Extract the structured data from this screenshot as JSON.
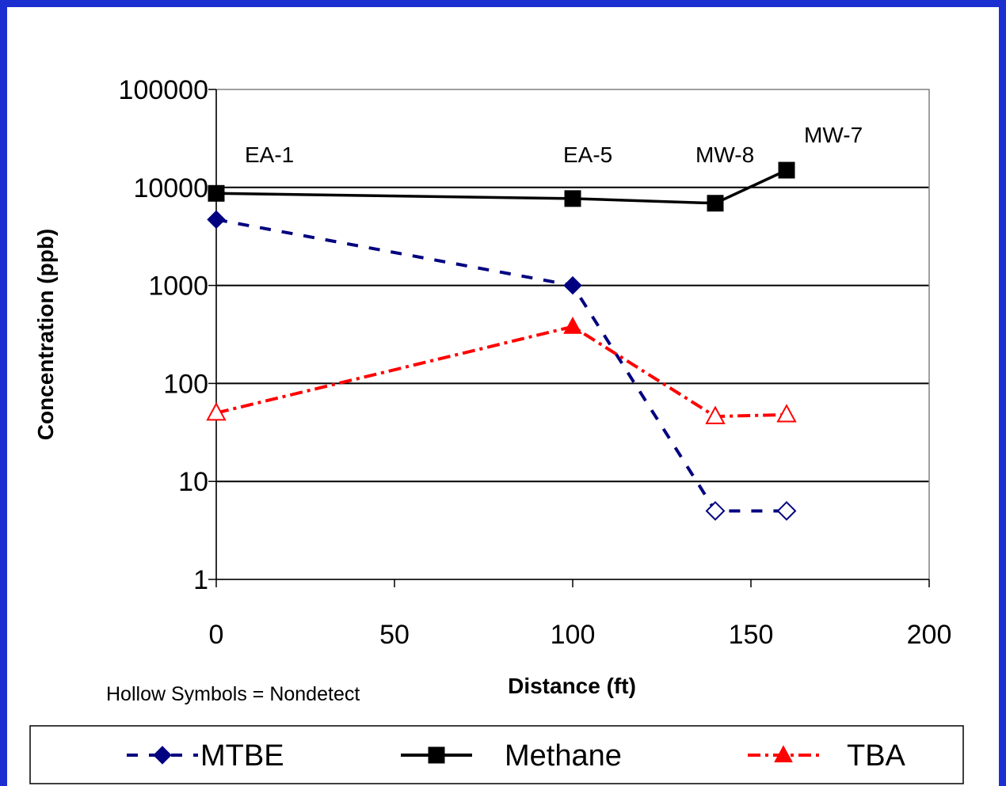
{
  "chart_data": {
    "type": "line",
    "xlabel": "Distance (ft)",
    "ylabel": "Concentration (ppb)",
    "xlim": [
      0,
      200
    ],
    "ylim": [
      1,
      100000
    ],
    "y_scale": "log",
    "grid": "horizontal major gridlines",
    "x_ticks": [
      "0",
      "50",
      "100",
      "150",
      "200"
    ],
    "y_ticks": [
      "1",
      "10",
      "100",
      "1000",
      "10000",
      "100000"
    ],
    "legend_position": "bottom",
    "note": "Hollow Symbols = Nondetect",
    "annotations": [
      {
        "text": "EA-1",
        "x": 0
      },
      {
        "text": "EA-5",
        "x": 100
      },
      {
        "text": "MW-8",
        "x": 140
      },
      {
        "text": "MW-7",
        "x": 160
      }
    ],
    "series": [
      {
        "name": "MTBE",
        "color": "#000080",
        "marker": "diamond",
        "line_style": "dashed",
        "x": [
          0,
          100,
          140,
          160
        ],
        "y": [
          4700,
          1000,
          5,
          5
        ],
        "hollow": [
          false,
          false,
          true,
          true
        ]
      },
      {
        "name": "Methane",
        "color": "#000000",
        "marker": "square",
        "line_style": "solid",
        "x": [
          0,
          100,
          140,
          160
        ],
        "y": [
          8700,
          7700,
          6900,
          15000
        ],
        "hollow": [
          false,
          false,
          false,
          false
        ]
      },
      {
        "name": "TBA",
        "color": "#ff0000",
        "marker": "triangle",
        "line_style": "dash-dot",
        "x": [
          0,
          100,
          140,
          160
        ],
        "y": [
          50,
          380,
          46,
          48
        ],
        "hollow": [
          true,
          false,
          true,
          true
        ]
      }
    ]
  }
}
